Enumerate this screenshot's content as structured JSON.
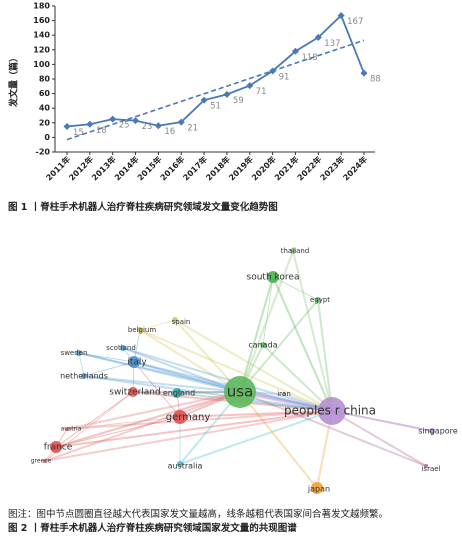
{
  "chart_data": {
    "type": "line",
    "title": "图 1 丨脊柱手术机器人治疗脊柱疾病研究领域发文量变化趋势图",
    "y_label": "发文量（篇）",
    "categories": [
      "2011年",
      "2012年",
      "2013年",
      "2014年",
      "2015年",
      "2016年",
      "2017年",
      "2018年",
      "2019年",
      "2020年",
      "2021年",
      "2022年",
      "2023年",
      "2024年"
    ],
    "values": [
      15,
      18,
      25,
      23,
      16,
      21,
      51,
      59,
      71,
      91,
      118,
      137,
      167,
      88
    ],
    "color": "#4a79b5",
    "trend": [
      -3,
      133
    ],
    "ylim": [
      -20,
      180
    ],
    "yticks": [
      -20,
      0,
      20,
      40,
      60,
      80,
      100,
      120,
      140,
      160,
      180
    ]
  },
  "network": {
    "title": "图 2 丨脊柱手术机器人治疗脊柱疾病研究领域国家发文量的共现图谱",
    "note": "图注：图中节点圆圈直径越大代表国家发文量越高，线条越粗代表国家间合著发文越频繁。",
    "nodes": [
      {
        "label": "usa",
        "color": "#5cb85c"
      },
      {
        "label": "peoples r china",
        "color": "#b48fd0"
      },
      {
        "label": "south korea",
        "color": "#4caf50"
      },
      {
        "label": "thailand",
        "color": "#8fbf80"
      },
      {
        "label": "egypt",
        "color": "#6abf6a"
      },
      {
        "label": "canada",
        "color": "#6abf6a"
      },
      {
        "label": "spain",
        "color": "#c9c95a"
      },
      {
        "label": "belgium",
        "color": "#d6c25a"
      },
      {
        "label": "scotland",
        "color": "#5a9fd6"
      },
      {
        "label": "sweden",
        "color": "#5a9fd6"
      },
      {
        "label": "italy",
        "color": "#4a90d0"
      },
      {
        "label": "netherlands",
        "color": "#5a9fd6"
      },
      {
        "label": "switzerland",
        "color": "#e05a5a"
      },
      {
        "label": "england",
        "color": "#3aa6a6"
      },
      {
        "label": "germany",
        "color": "#e05050"
      },
      {
        "label": "iran",
        "color": "#9aa8c8"
      },
      {
        "label": "austria",
        "color": "#e07070"
      },
      {
        "label": "france",
        "color": "#e05050"
      },
      {
        "label": "greece",
        "color": "#e07070"
      },
      {
        "label": "australia",
        "color": "#4ac0d0"
      },
      {
        "label": "singapore",
        "color": "#b48fd0"
      },
      {
        "label": "israel",
        "color": "#b06a9a"
      },
      {
        "label": "japan",
        "color": "#f0a030"
      }
    ]
  }
}
